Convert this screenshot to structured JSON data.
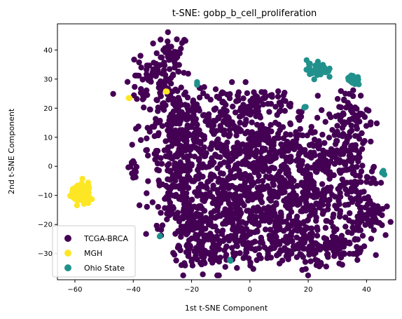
{
  "chart_data": {
    "type": "scatter",
    "title": "t-SNE: gobp_b_cell_proliferation",
    "xlabel": "1st t-SNE Component",
    "ylabel": "2nd t-SNE Component",
    "xlim": [
      -66,
      50
    ],
    "ylim": [
      -39,
      49
    ],
    "xticks": [
      -60,
      -40,
      -20,
      0,
      20,
      40
    ],
    "yticks": [
      -30,
      -20,
      -10,
      0,
      10,
      20,
      30,
      40
    ],
    "grid": false,
    "legend_position": "lower-left",
    "series": [
      {
        "name": "TCGA-BRCA",
        "color": "#440154",
        "clusters": [
          {
            "cx": -27,
            "cy": 36,
            "sx": 3,
            "sy": 5,
            "n": 60
          },
          {
            "cx": -35,
            "cy": 28,
            "sx": 4,
            "sy": 4,
            "n": 40
          },
          {
            "cx": -26,
            "cy": 18,
            "sx": 6,
            "sy": 6,
            "n": 120
          },
          {
            "cx": -23,
            "cy": 6,
            "sx": 6,
            "sy": 6,
            "n": 140
          },
          {
            "cx": -22,
            "cy": -8,
            "sx": 6,
            "sy": 6,
            "n": 150
          },
          {
            "cx": -20,
            "cy": -22,
            "sx": 5,
            "sy": 5,
            "n": 110
          },
          {
            "cx": -15,
            "cy": -30,
            "sx": 6,
            "sy": 2.5,
            "n": 60
          },
          {
            "cx": -9,
            "cy": 20,
            "sx": 5,
            "sy": 5,
            "n": 70
          },
          {
            "cx": -6,
            "cy": 6,
            "sx": 6,
            "sy": 6,
            "n": 130
          },
          {
            "cx": -6,
            "cy": -10,
            "sx": 6,
            "sy": 6,
            "n": 150
          },
          {
            "cx": -3,
            "cy": -24,
            "sx": 6,
            "sy": 5,
            "n": 110
          },
          {
            "cx": 4,
            "cy": 20,
            "sx": 5,
            "sy": 4,
            "n": 70
          },
          {
            "cx": 7,
            "cy": 5,
            "sx": 6,
            "sy": 6,
            "n": 140
          },
          {
            "cx": 8,
            "cy": -10,
            "sx": 6,
            "sy": 6,
            "n": 150
          },
          {
            "cx": 10,
            "cy": -26,
            "sx": 6,
            "sy": 5,
            "n": 110
          },
          {
            "cx": 21,
            "cy": 4,
            "sx": 5,
            "sy": 6,
            "n": 110
          },
          {
            "cx": 22,
            "cy": -12,
            "sx": 5,
            "sy": 6,
            "n": 120
          },
          {
            "cx": 23,
            "cy": -27,
            "sx": 5,
            "sy": 4,
            "n": 70
          },
          {
            "cx": 33,
            "cy": 15,
            "sx": 4,
            "sy": 6,
            "n": 90
          },
          {
            "cx": 35,
            "cy": -2,
            "sx": 4,
            "sy": 6,
            "n": 90
          },
          {
            "cx": 37,
            "cy": -17,
            "sx": 4,
            "sy": 5,
            "n": 70
          },
          {
            "cx": 42,
            "cy": -16,
            "sx": 2,
            "sy": 3,
            "n": 30
          },
          {
            "cx": 30,
            "cy": -28,
            "sx": 4,
            "sy": 2.5,
            "n": 35
          },
          {
            "cx": -40,
            "cy": -1,
            "sx": 1.2,
            "sy": 2.5,
            "n": 10
          },
          {
            "cx": 24,
            "cy": -33,
            "sx": 0.6,
            "sy": 0.6,
            "n": 3
          }
        ]
      },
      {
        "name": "MGH",
        "color": "#fde725",
        "clusters": [
          {
            "cx": -58,
            "cy": -10,
            "sx": 1.6,
            "sy": 1.6,
            "n": 90
          },
          {
            "cx": -56,
            "cy": -7.5,
            "sx": 0.8,
            "sy": 0.8,
            "n": 10
          },
          {
            "cx": -41.5,
            "cy": 23.5,
            "sx": 0.2,
            "sy": 0.2,
            "n": 2
          },
          {
            "cx": -28.5,
            "cy": 25.8,
            "sx": 0.2,
            "sy": 0.2,
            "n": 2
          }
        ]
      },
      {
        "name": "Ohio State",
        "color": "#21918c",
        "clusters": [
          {
            "cx": 23,
            "cy": 33.5,
            "sx": 1.8,
            "sy": 1.6,
            "n": 45
          },
          {
            "cx": 35,
            "cy": 29.5,
            "sx": 1.4,
            "sy": 0.8,
            "n": 20
          },
          {
            "cx": 46,
            "cy": -2,
            "sx": 0.3,
            "sy": 0.5,
            "n": 4
          },
          {
            "cx": -18,
            "cy": 29,
            "sx": 0.3,
            "sy": 0.5,
            "n": 3
          },
          {
            "cx": 19,
            "cy": 20.3,
            "sx": 0.3,
            "sy": 0.3,
            "n": 3
          },
          {
            "cx": -31,
            "cy": -24,
            "sx": 0.2,
            "sy": 0.2,
            "n": 2
          },
          {
            "cx": -6.5,
            "cy": -32.3,
            "sx": 0.2,
            "sy": 0.2,
            "n": 2
          }
        ]
      }
    ]
  }
}
